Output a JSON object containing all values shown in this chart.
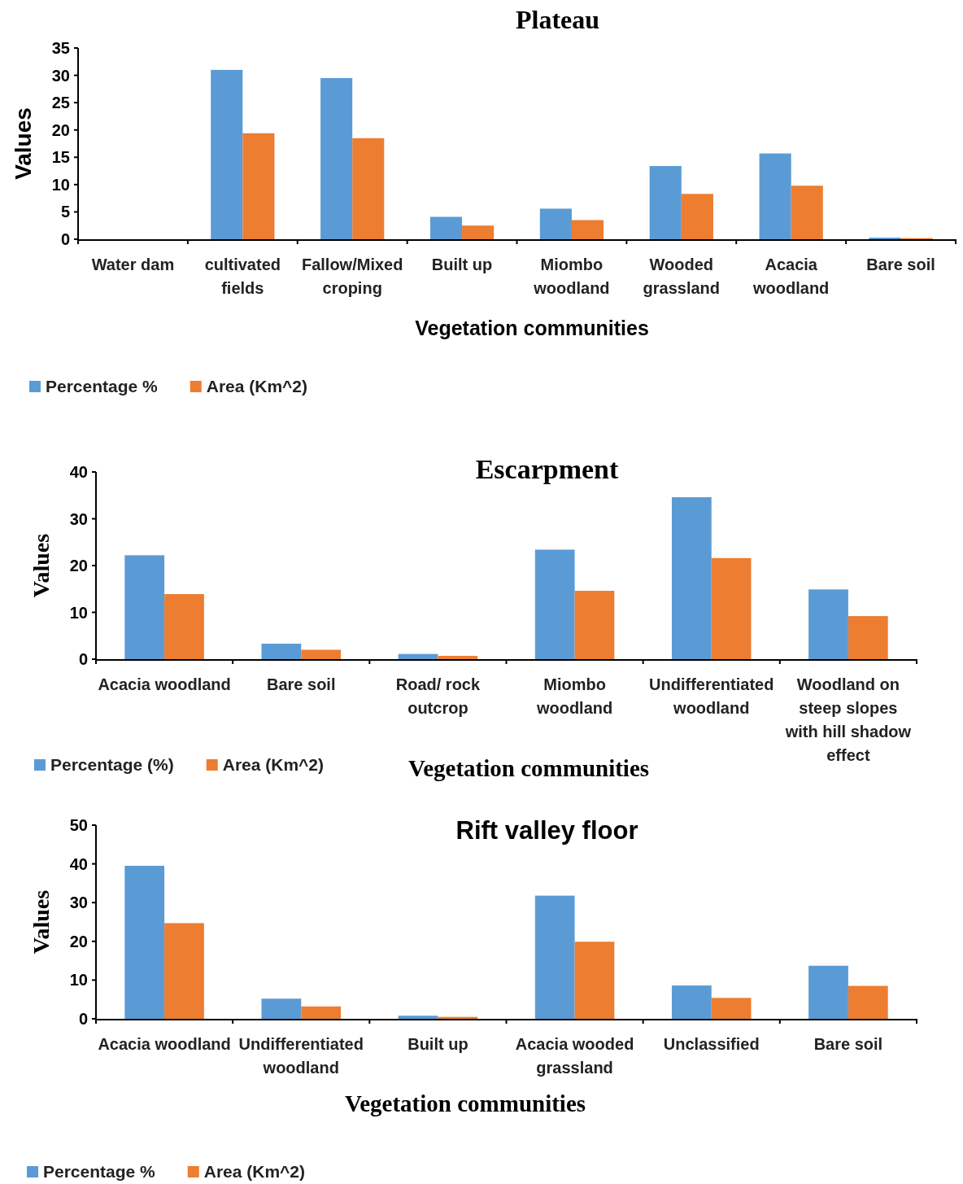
{
  "chart_data": [
    {
      "type": "bar",
      "title": "Plateau",
      "xlabel": "Vegetation communities",
      "ylabel": "Values",
      "categories": [
        "Water dam",
        "cultivated fields",
        "Fallow/Mixed croping",
        "Built up",
        "Miombo woodland",
        "Wooded grassland",
        "Acacia woodland",
        "Bare soil"
      ],
      "series": [
        {
          "name": "Percentage %",
          "color": "#5b9bd5",
          "values": [
            0,
            31,
            29.5,
            4.1,
            5.6,
            13.4,
            15.7,
            0.3
          ]
        },
        {
          "name": "Area (Km^2)",
          "color": "#ed7d31",
          "values": [
            0,
            19.4,
            18.5,
            2.5,
            3.5,
            8.3,
            9.8,
            0.2
          ]
        }
      ],
      "ylim": [
        0,
        35
      ],
      "yticks": [
        0,
        5,
        10,
        15,
        20,
        25,
        30,
        35
      ],
      "grid": false,
      "legend": "bottom left"
    },
    {
      "type": "bar",
      "title": "Escarpment",
      "xlabel": "Vegetation communities",
      "ylabel": "Values",
      "categories": [
        "Acacia woodland",
        "Bare soil",
        "Road/ rock outcrop",
        "Miombo woodland",
        "Undifferentiated woodland",
        "Woodland on steep slopes with hill shadow effect"
      ],
      "series": [
        {
          "name": "Percentage (%)",
          "color": "#5b9bd5",
          "values": [
            22.2,
            3.3,
            1.1,
            23.4,
            34.6,
            14.9
          ]
        },
        {
          "name": "Area (Km^2)",
          "color": "#ed7d31",
          "values": [
            13.9,
            2.0,
            0.7,
            14.6,
            21.6,
            9.2
          ]
        }
      ],
      "ylim": [
        0,
        40
      ],
      "yticks": [
        0,
        10,
        20,
        30,
        40
      ],
      "grid": false,
      "legend": "bottom left"
    },
    {
      "type": "bar",
      "title": "Rift valley floor",
      "xlabel": "Vegetation communities",
      "ylabel": "Values",
      "categories": [
        "Acacia woodland",
        "Undifferentiated woodland",
        "Built up",
        "Acacia wooded grassland",
        "Unclassified",
        "Bare soil"
      ],
      "series": [
        {
          "name": "Percentage %",
          "color": "#5b9bd5",
          "values": [
            39.5,
            5.2,
            0.8,
            31.8,
            8.6,
            13.7
          ]
        },
        {
          "name": "Area (Km^2)",
          "color": "#ed7d31",
          "values": [
            24.7,
            3.2,
            0.5,
            19.9,
            5.4,
            8.5
          ]
        }
      ],
      "ylim": [
        0,
        50
      ],
      "yticks": [
        0,
        10,
        20,
        30,
        40,
        50
      ],
      "grid": false,
      "legend": "bottom left"
    }
  ]
}
